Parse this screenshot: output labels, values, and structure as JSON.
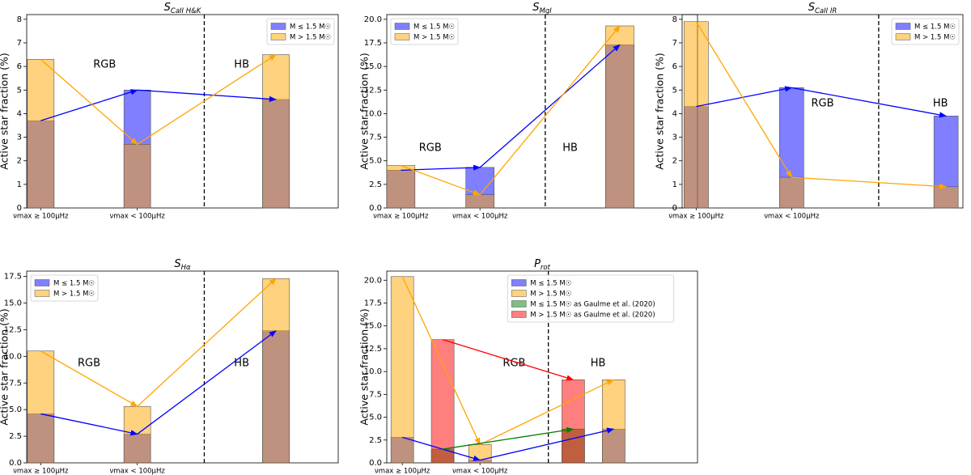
{
  "chart_data": [
    {
      "type": "bar",
      "title": {
        "symbol": "S",
        "subscript": "CaII H&K"
      },
      "ylabel": "Active star fraction (%)",
      "categories": [
        "νmax ≥ 100μHz",
        "νmax < 100μHz",
        null
      ],
      "series": [
        {
          "name": "M ≤ 1.5 M☉",
          "color": "#0000ff",
          "values": [
            3.7,
            5.0,
            4.6
          ]
        },
        {
          "name": "M > 1.5 M☉",
          "color": "#ffa500",
          "values": [
            6.3,
            2.7,
            6.5
          ]
        }
      ],
      "annotations": [
        "RGB",
        "HB"
      ],
      "ylim": [
        0,
        8.2
      ],
      "yticks": [
        0,
        1,
        2,
        3,
        4,
        5,
        6,
        7,
        8
      ],
      "legend": "upper right"
    },
    {
      "type": "bar",
      "title": {
        "symbol": "S",
        "subscript": "MgI"
      },
      "ylabel": "Active star fraction (%)",
      "categories": [
        "νmax ≥ 100μHz",
        "νmax < 100μHz",
        null
      ],
      "series": [
        {
          "name": "M ≤ 1.5 M☉",
          "color": "#0000ff",
          "values": [
            4.0,
            4.3,
            17.3
          ]
        },
        {
          "name": "M > 1.5 M☉",
          "color": "#ffa500",
          "values": [
            4.5,
            1.4,
            19.3
          ]
        }
      ],
      "annotations": [
        "RGB",
        "HB"
      ],
      "ylim": [
        0,
        20.5
      ],
      "yticks": [
        {
          "value": 0,
          "label": "0.0"
        },
        2.5,
        {
          "value": 5,
          "label": "5.0"
        },
        7.5,
        {
          "value": 10,
          "label": "10.0"
        },
        12.5,
        {
          "value": 15,
          "label": "15.0"
        },
        17.5,
        {
          "value": 20,
          "label": "20.0"
        }
      ],
      "legend": "upper left"
    },
    {
      "type": "bar",
      "title": {
        "symbol": "S",
        "subscript": "CaII IR"
      },
      "ylabel": "Active star fraction (%)",
      "categories": [
        "νmax ≥ 100μHz",
        "νmax < 100μHz",
        null
      ],
      "series": [
        {
          "name": "M ≤ 1.5 M☉",
          "color": "#0000ff",
          "values": [
            4.3,
            5.1,
            3.9
          ]
        },
        {
          "name": "M > 1.5 M☉",
          "color": "#ffa500",
          "values": [
            7.9,
            1.3,
            0.9
          ]
        }
      ],
      "annotations": [
        "RGB",
        "HB"
      ],
      "ylim": [
        0,
        8.2
      ],
      "yticks": [
        0,
        1,
        2,
        3,
        4,
        5,
        6,
        7,
        8
      ],
      "legend": "upper right"
    },
    {
      "type": "bar",
      "title": {
        "symbol": "S",
        "subscript": "Hα"
      },
      "ylabel": "Active star fraction (%)",
      "categories": [
        "νmax ≥ 100μHz",
        "νmax < 100μHz",
        null
      ],
      "series": [
        {
          "name": "M ≤ 1.5 M☉",
          "color": "#0000ff",
          "values": [
            4.6,
            2.7,
            12.4
          ]
        },
        {
          "name": "M > 1.5 M☉",
          "color": "#ffa500",
          "values": [
            10.5,
            5.3,
            17.3
          ]
        }
      ],
      "annotations": [
        "RGB",
        "HB"
      ],
      "ylim": [
        0,
        18
      ],
      "yticks": [
        {
          "value": 0,
          "label": "0.0"
        },
        2.5,
        {
          "value": 5,
          "label": "5.0"
        },
        7.5,
        {
          "value": 10,
          "label": "10.0"
        },
        12.5,
        {
          "value": 15,
          "label": "15.0"
        },
        17.5
      ],
      "legend": "upper left"
    },
    {
      "type": "bar",
      "title": {
        "symbol": "P",
        "subscript": "rot"
      },
      "ylabel": "Active star fraction (%)",
      "categories": [
        "νmax ≥ 100μHz",
        null,
        "νmax < 100μHz",
        null,
        null
      ],
      "series": [
        {
          "name": "M ≤ 1.5 M☉",
          "color": "#0000ff",
          "values": [
            2.8,
            null,
            0.3,
            null,
            3.7
          ]
        },
        {
          "name": "M > 1.5 M☉",
          "color": "#ffa500",
          "values": [
            20.4,
            null,
            2.0,
            null,
            9.1
          ]
        },
        {
          "name": "M ≤ 1.5 M☉ as Gaulme et al. (2020)",
          "color": "#008000",
          "values": [
            null,
            1.5,
            null,
            3.7,
            null
          ]
        },
        {
          "name": "M > 1.5 M☉ as Gaulme et al. (2020)",
          "color": "#ff0000",
          "values": [
            null,
            13.5,
            null,
            9.1,
            null
          ]
        }
      ],
      "annotations": [
        "RGB",
        "HB"
      ],
      "ylim": [
        0,
        21
      ],
      "yticks": [
        {
          "value": 0,
          "label": "0.0"
        },
        2.5,
        {
          "value": 5,
          "label": "5.0"
        },
        7.5,
        {
          "value": 10,
          "label": "10.0"
        },
        12.5,
        {
          "value": 15,
          "label": "15.0"
        },
        17.5,
        {
          "value": 20,
          "label": "20.0"
        }
      ],
      "legend": "upper center"
    }
  ]
}
